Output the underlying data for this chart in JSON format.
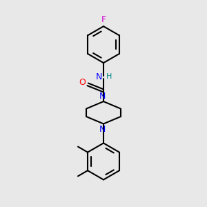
{
  "bg_color": "#e8e8e8",
  "line_color": "#000000",
  "bond_width": 1.5,
  "atom_colors": {
    "N": "#0000ff",
    "O": "#ff0000",
    "F": "#cc00cc",
    "H": "#008888",
    "C": "#000000"
  },
  "font_size": 8,
  "figsize": [
    3.0,
    3.0
  ],
  "dpi": 100
}
